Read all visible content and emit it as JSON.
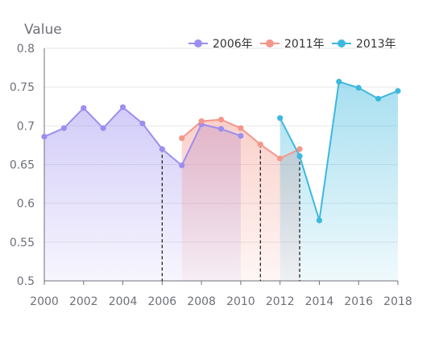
{
  "chart_data": {
    "type": "line",
    "ylabel": "Value",
    "xlim": [
      2000,
      2018
    ],
    "ylim": [
      0.5,
      0.8
    ],
    "x_ticks": [
      "2000",
      "2002",
      "2004",
      "2006",
      "2008",
      "2010",
      "2012",
      "2014",
      "2016",
      "2018"
    ],
    "y_ticks": [
      "0.5",
      "0.55",
      "0.6",
      "0.65",
      "0.7",
      "0.75",
      "0.8"
    ],
    "grid": true,
    "legend_position": "top-right",
    "series": [
      {
        "name": "2006年",
        "color": "#9b8ef0",
        "x": [
          2000,
          2001,
          2002,
          2003,
          2004,
          2005,
          2006,
          2007,
          2008,
          2009,
          2010
        ],
        "values": [
          0.686,
          0.697,
          0.723,
          0.697,
          0.724,
          0.703,
          0.67,
          0.649,
          0.702,
          0.696,
          0.687
        ]
      },
      {
        "name": "2011年",
        "color": "#f4968a",
        "x": [
          2007,
          2008,
          2009,
          2010,
          2011,
          2012,
          2013
        ],
        "values": [
          0.684,
          0.706,
          0.708,
          0.697,
          0.676,
          0.658,
          0.67
        ]
      },
      {
        "name": "2013年",
        "color": "#3db8de",
        "x": [
          2012,
          2013,
          2014,
          2015,
          2016,
          2017,
          2018
        ],
        "values": [
          0.71,
          0.661,
          0.578,
          0.757,
          0.749,
          0.735,
          0.745
        ]
      }
    ],
    "markers": [
      2006,
      2011,
      2013
    ]
  }
}
